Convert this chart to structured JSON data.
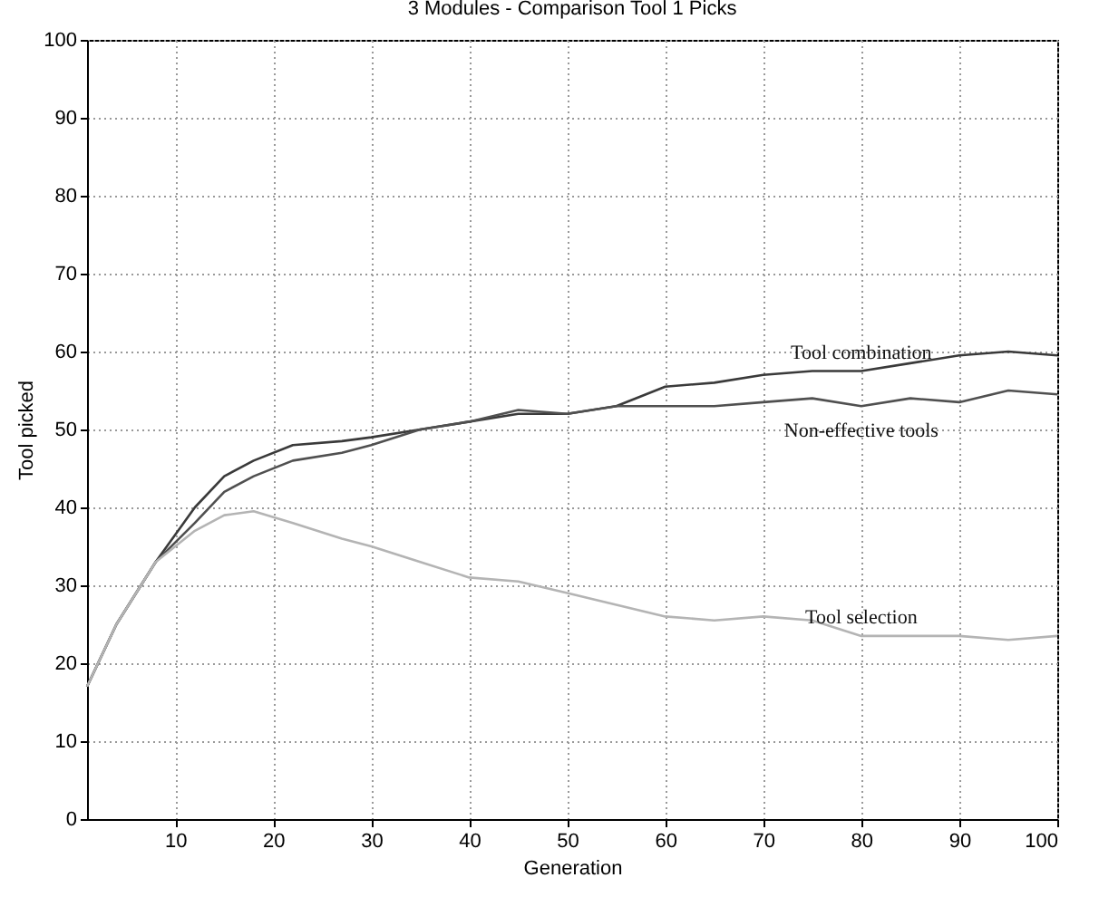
{
  "chart_data": {
    "type": "line",
    "title": "3 Modules - Comparison Tool 1 Picks",
    "xlabel": "Generation",
    "ylabel": "Tool picked",
    "x": [
      1,
      4,
      8,
      12,
      15,
      18,
      22,
      27,
      30,
      35,
      40,
      45,
      50,
      55,
      60,
      65,
      70,
      75,
      80,
      85,
      90,
      95,
      100
    ],
    "series": [
      {
        "name": "Tool combination",
        "color": "#3a3a3a",
        "values": [
          17,
          25,
          33,
          40,
          44,
          46,
          48,
          48.5,
          49,
          50,
          51,
          52,
          52,
          53,
          55.5,
          56,
          57,
          57.5,
          57.5,
          58.5,
          59.5,
          60,
          59.5
        ]
      },
      {
        "name": "Non-effective tools",
        "color": "#505050",
        "values": [
          17,
          25,
          33,
          38,
          42,
          44,
          46,
          47,
          48,
          50,
          51,
          52.5,
          52,
          53,
          53,
          53,
          53.5,
          54,
          53,
          54,
          53.5,
          55,
          54.5
        ]
      },
      {
        "name": "Tool selection",
        "color": "#b4b4b4",
        "values": [
          17,
          25,
          33,
          37,
          39,
          39.5,
          38,
          36,
          35,
          33,
          31,
          30.5,
          29,
          27.5,
          26,
          25.5,
          26,
          25.5,
          23.5,
          23.5,
          23.5,
          23,
          23.5
        ]
      }
    ],
    "xlim": [
      1,
      100
    ],
    "xticks": [
      10,
      20,
      30,
      40,
      50,
      60,
      70,
      80,
      90,
      100
    ],
    "ylim": [
      0,
      100
    ],
    "yticks": [
      0,
      10,
      20,
      30,
      40,
      50,
      60,
      70,
      80,
      90,
      100
    ],
    "grid": true,
    "legend": false,
    "marker": "none",
    "line_style": "solid"
  }
}
